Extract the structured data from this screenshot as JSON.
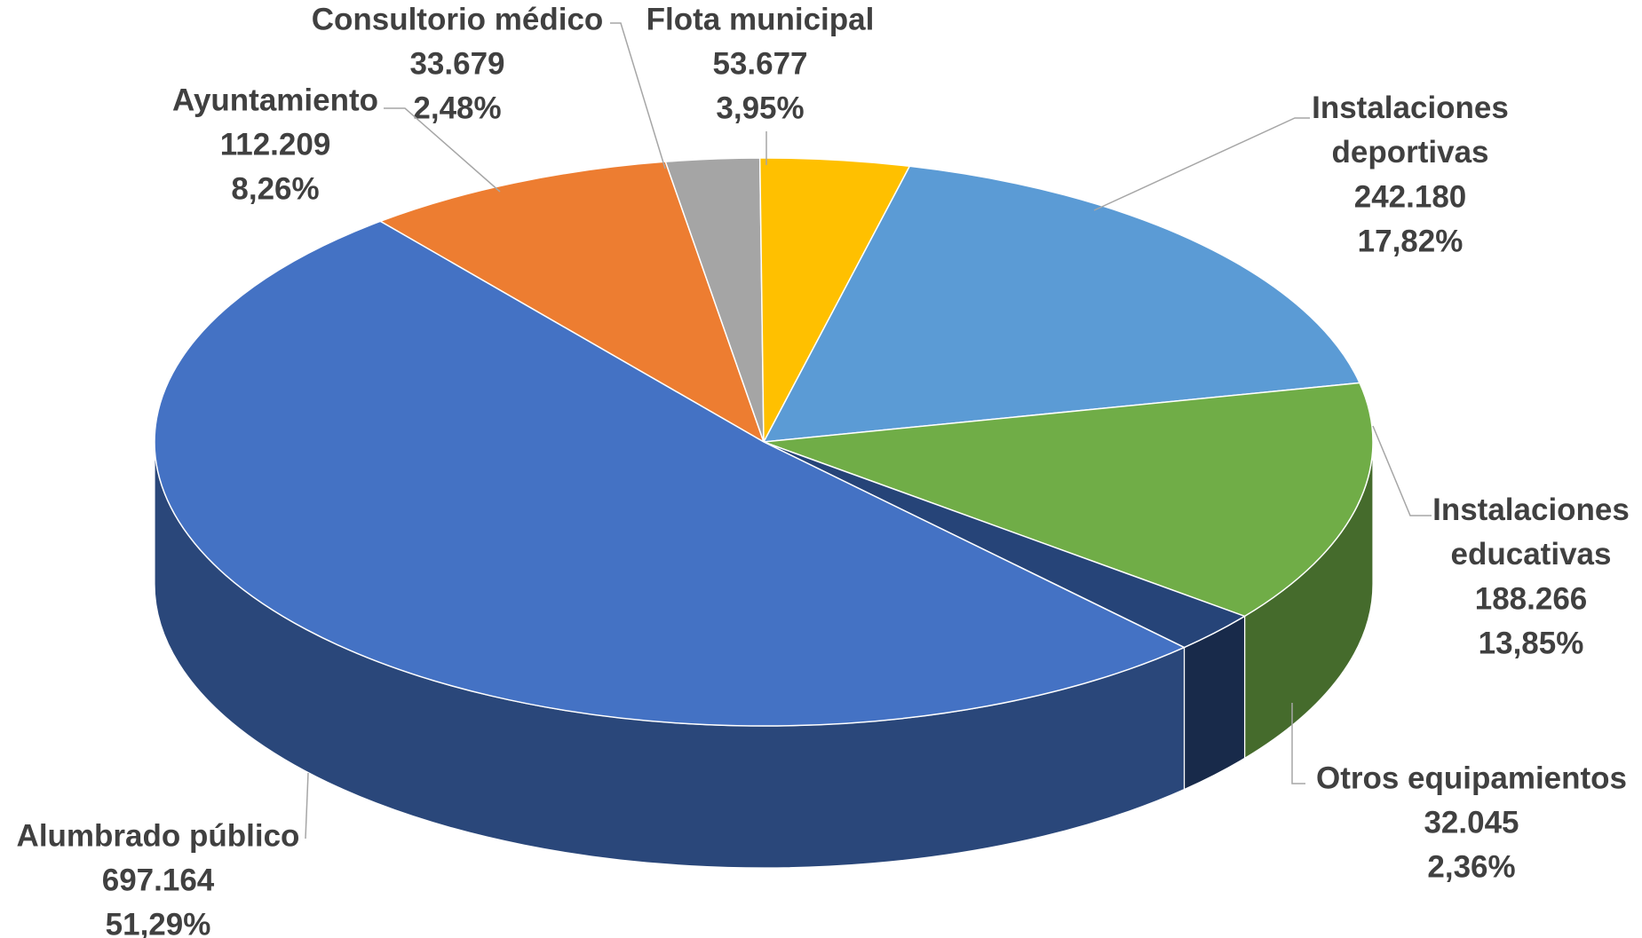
{
  "chart_data": {
    "type": "pie3d",
    "categories": [
      "Ayuntamiento",
      "Consultorio médico",
      "Flota municipal",
      "Instalaciones deportivas",
      "Instalaciones educativas",
      "Otros equipamientos",
      "Alumbrado público"
    ],
    "values": [
      112209,
      33679,
      53677,
      242180,
      188266,
      32045,
      697164
    ],
    "value_labels": [
      "112.209",
      "33.679",
      "53.677",
      "242.180",
      "188.266",
      "32.045",
      "697.164"
    ],
    "percents": [
      8.26,
      2.48,
      3.95,
      17.82,
      13.85,
      2.36,
      51.29
    ],
    "percent_labels": [
      "8,26%",
      "2,48%",
      "3,95%",
      "17,82%",
      "13,85%",
      "2,36%",
      "51,29%"
    ],
    "colors": [
      "#ed7d31",
      "#a5a5a5",
      "#ffc000",
      "#5b9bd5",
      "#70ad47",
      "#264478",
      "#4472c4"
    ]
  }
}
